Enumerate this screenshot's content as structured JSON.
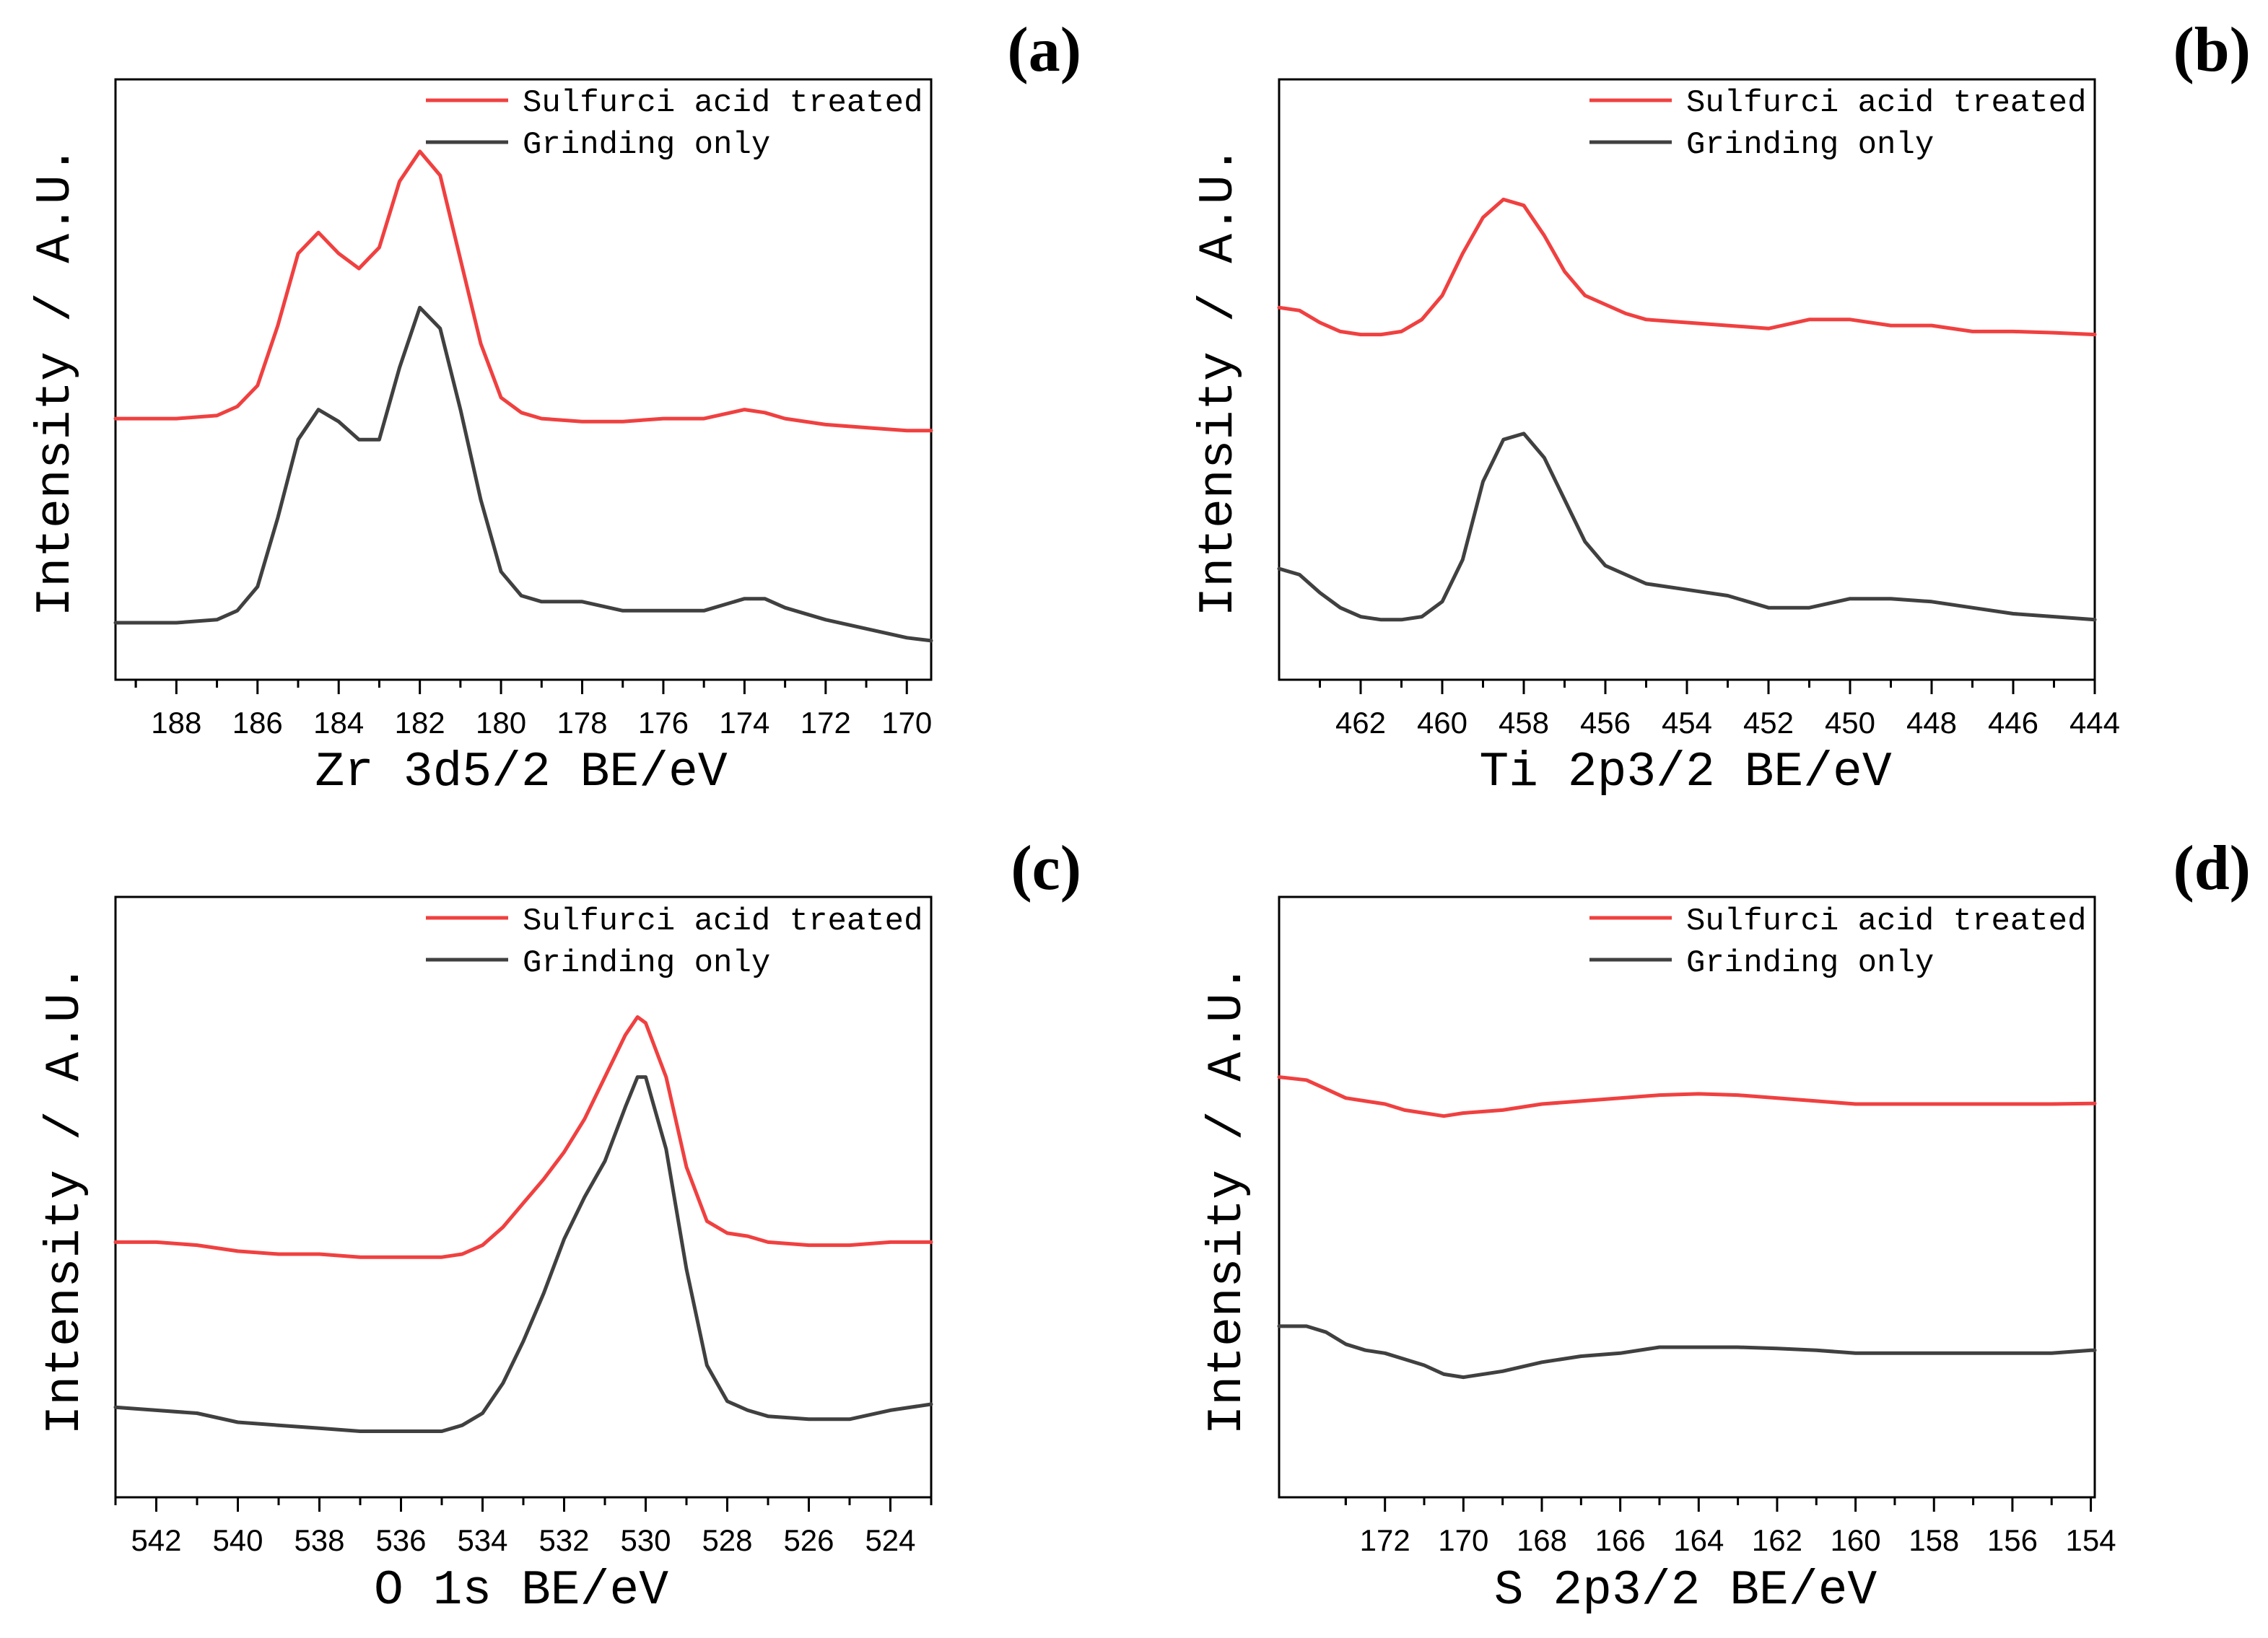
{
  "colors": {
    "treated": "#f04040",
    "grinding": "#404040"
  },
  "chart_data": [
    {
      "panel_label": "(a)",
      "type": "line",
      "xlabel": "Zr 3d5/2 BE/eV",
      "ylabel": "Intensity / A.U.",
      "x_reversed": true,
      "xlim": [
        189.5,
        169.4
      ],
      "ylim": [
        0,
        1
      ],
      "xticks": [
        188,
        186,
        184,
        182,
        180,
        178,
        176,
        174,
        172,
        170
      ],
      "legend": [
        "Sulfurci acid treated",
        "Grinding only"
      ],
      "legend_position": "top-right",
      "series": [
        {
          "name": "Sulfurci acid treated",
          "color": "#f04040",
          "x": [
            189.5,
            188,
            187,
            186.5,
            186,
            185.5,
            185,
            184.5,
            184,
            183.5,
            183,
            182.5,
            182,
            181.5,
            181,
            180.5,
            180,
            179.5,
            179,
            178,
            177,
            176,
            175,
            174,
            173.5,
            173,
            172,
            171,
            170,
            169.4
          ],
          "y": [
            0.435,
            0.435,
            0.44,
            0.455,
            0.49,
            0.59,
            0.71,
            0.745,
            0.71,
            0.685,
            0.72,
            0.83,
            0.88,
            0.84,
            0.7,
            0.56,
            0.47,
            0.445,
            0.435,
            0.43,
            0.43,
            0.435,
            0.435,
            0.45,
            0.445,
            0.435,
            0.425,
            0.42,
            0.415,
            0.415
          ]
        },
        {
          "name": "Grinding only",
          "color": "#404040",
          "x": [
            189.5,
            188,
            187,
            186.5,
            186,
            185.5,
            185,
            184.5,
            184,
            183.5,
            183,
            182.5,
            182,
            181.5,
            181,
            180.5,
            180,
            179.5,
            179,
            178,
            177,
            176,
            175,
            174,
            173.5,
            173,
            172,
            171,
            170,
            169.4
          ],
          "y": [
            0.095,
            0.095,
            0.1,
            0.115,
            0.155,
            0.27,
            0.4,
            0.45,
            0.43,
            0.4,
            0.4,
            0.52,
            0.62,
            0.585,
            0.45,
            0.3,
            0.18,
            0.14,
            0.13,
            0.13,
            0.115,
            0.115,
            0.115,
            0.135,
            0.135,
            0.12,
            0.1,
            0.085,
            0.07,
            0.065
          ]
        }
      ]
    },
    {
      "panel_label": "(b)",
      "type": "line",
      "xlabel": "Ti 2p3/2 BE/eV",
      "ylabel": "Intensity / A.U.",
      "x_reversed": true,
      "xlim": [
        464,
        444
      ],
      "ylim": [
        0,
        1
      ],
      "xticks": [
        462,
        460,
        458,
        456,
        454,
        452,
        450,
        448,
        446,
        444
      ],
      "legend": [
        "Sulfurci acid treated",
        "Grinding only"
      ],
      "legend_position": "top-right",
      "series": [
        {
          "name": "Sulfurci acid treated",
          "color": "#f04040",
          "x": [
            464,
            463.5,
            463,
            462.5,
            462,
            461.5,
            461,
            460.5,
            460,
            459.5,
            459,
            458.5,
            458,
            457.5,
            457,
            456.5,
            456,
            455.5,
            455,
            454,
            453,
            452,
            451,
            450,
            449,
            448,
            447,
            446,
            445,
            444
          ],
          "y": [
            0.62,
            0.615,
            0.595,
            0.58,
            0.575,
            0.575,
            0.58,
            0.6,
            0.64,
            0.71,
            0.77,
            0.8,
            0.79,
            0.74,
            0.68,
            0.64,
            0.625,
            0.61,
            0.6,
            0.595,
            0.59,
            0.585,
            0.6,
            0.6,
            0.59,
            0.59,
            0.58,
            0.58,
            0.578,
            0.575
          ]
        },
        {
          "name": "Grinding only",
          "color": "#404040",
          "x": [
            464,
            463.5,
            463,
            462.5,
            462,
            461.5,
            461,
            460.5,
            460,
            459.5,
            459,
            458.5,
            458,
            457.5,
            457,
            456.5,
            456,
            455.5,
            455,
            454,
            453,
            452,
            451,
            450,
            449,
            448,
            447,
            446,
            445,
            444
          ],
          "y": [
            0.185,
            0.175,
            0.145,
            0.12,
            0.105,
            0.1,
            0.1,
            0.105,
            0.13,
            0.2,
            0.33,
            0.4,
            0.41,
            0.37,
            0.3,
            0.23,
            0.19,
            0.175,
            0.16,
            0.15,
            0.14,
            0.12,
            0.12,
            0.135,
            0.135,
            0.13,
            0.12,
            0.11,
            0.105,
            0.1
          ]
        }
      ]
    },
    {
      "panel_label": "(c)",
      "type": "line",
      "xlabel": "O 1s BE/eV",
      "ylabel": "Intensity / A.U.",
      "x_reversed": true,
      "xlim": [
        543,
        523
      ],
      "ylim": [
        0,
        1
      ],
      "xticks": [
        542,
        540,
        538,
        536,
        534,
        532,
        530,
        528,
        526,
        524
      ],
      "legend": [
        "Sulfurci acid treated",
        "Grinding only"
      ],
      "legend_position": "top-right",
      "series": [
        {
          "name": "Sulfurci acid treated",
          "color": "#f04040",
          "x": [
            543,
            542,
            541,
            540,
            539,
            538,
            537,
            536,
            535,
            534.5,
            534,
            533.5,
            533,
            532.5,
            532,
            531.5,
            531,
            530.5,
            530.2,
            530,
            529.5,
            529,
            528.5,
            528,
            527.5,
            527,
            526,
            525,
            524,
            523
          ],
          "y": [
            0.425,
            0.425,
            0.42,
            0.41,
            0.405,
            0.405,
            0.4,
            0.4,
            0.4,
            0.405,
            0.42,
            0.45,
            0.49,
            0.53,
            0.575,
            0.63,
            0.7,
            0.77,
            0.8,
            0.79,
            0.7,
            0.55,
            0.46,
            0.44,
            0.435,
            0.425,
            0.42,
            0.42,
            0.425,
            0.425
          ]
        },
        {
          "name": "Grinding only",
          "color": "#404040",
          "x": [
            543,
            542,
            541,
            540,
            539,
            538,
            537,
            536,
            535,
            534.5,
            534,
            533.5,
            533,
            532.5,
            532,
            531.5,
            531,
            530.5,
            530.2,
            530,
            529.5,
            529,
            528.5,
            528,
            527.5,
            527,
            526,
            525,
            524,
            523
          ],
          "y": [
            0.15,
            0.145,
            0.14,
            0.125,
            0.12,
            0.115,
            0.11,
            0.11,
            0.11,
            0.12,
            0.14,
            0.19,
            0.26,
            0.34,
            0.43,
            0.5,
            0.56,
            0.65,
            0.7,
            0.7,
            0.58,
            0.38,
            0.22,
            0.16,
            0.145,
            0.135,
            0.13,
            0.13,
            0.145,
            0.155
          ]
        }
      ]
    },
    {
      "panel_label": "(d)",
      "type": "line",
      "xlabel": "S 2p3/2 BE/eV",
      "ylabel": "Intensity / A.U.",
      "x_reversed": true,
      "xlim": [
        174.7,
        153.9
      ],
      "ylim": [
        0,
        1
      ],
      "xticks": [
        172,
        170,
        168,
        166,
        164,
        162,
        160,
        158,
        156,
        154
      ],
      "legend": [
        "Sulfurci acid treated",
        "Grinding only"
      ],
      "legend_position": "top-right",
      "series": [
        {
          "name": "Sulfurci acid treated",
          "color": "#f04040",
          "x": [
            174.7,
            174,
            173.5,
            173,
            172.5,
            172,
            171.5,
            171,
            170.5,
            170,
            169,
            168,
            167,
            166,
            165,
            164,
            163,
            162,
            161,
            160,
            159,
            158,
            157,
            156,
            155,
            154,
            153.9
          ],
          "y": [
            0.7,
            0.695,
            0.68,
            0.665,
            0.66,
            0.655,
            0.645,
            0.64,
            0.635,
            0.64,
            0.645,
            0.655,
            0.66,
            0.665,
            0.67,
            0.672,
            0.67,
            0.665,
            0.66,
            0.655,
            0.655,
            0.655,
            0.655,
            0.655,
            0.655,
            0.656,
            0.656
          ]
        },
        {
          "name": "Grinding only",
          "color": "#404040",
          "x": [
            174.7,
            174,
            173.5,
            173,
            172.5,
            172,
            171.5,
            171,
            170.5,
            170,
            169,
            168,
            167,
            166,
            165,
            164,
            163,
            162,
            161,
            160,
            159,
            158,
            157,
            156,
            155,
            154,
            153.9
          ],
          "y": [
            0.285,
            0.285,
            0.275,
            0.255,
            0.245,
            0.24,
            0.23,
            0.22,
            0.205,
            0.2,
            0.21,
            0.225,
            0.235,
            0.24,
            0.25,
            0.25,
            0.25,
            0.248,
            0.245,
            0.24,
            0.24,
            0.24,
            0.24,
            0.24,
            0.24,
            0.245,
            0.245
          ]
        }
      ]
    }
  ]
}
